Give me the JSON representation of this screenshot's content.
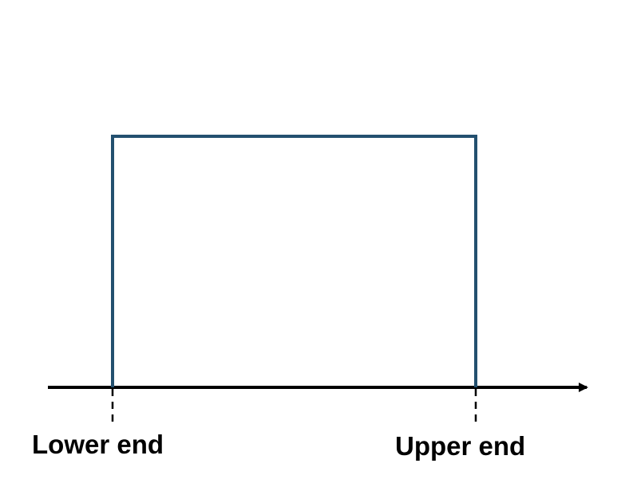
{
  "labels": {
    "lower_end": "Lower end",
    "upper_end": "Upper end"
  },
  "colors": {
    "rectangle": "#23506F",
    "axis": "#000000",
    "background": "#FFFFFF"
  }
}
